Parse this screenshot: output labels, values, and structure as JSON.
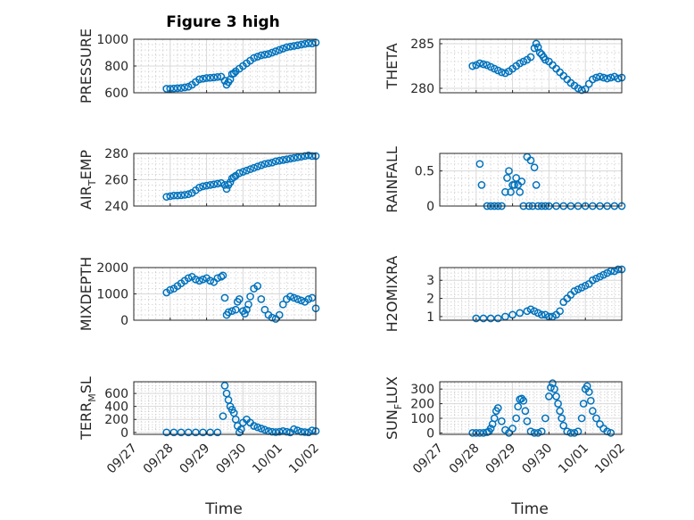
{
  "figure": {
    "title": "Figure 3 high",
    "xlabel": "Time",
    "marker_color": "#0072BD"
  },
  "xticks": [
    "09/27",
    "09/28",
    "09/29",
    "09/30",
    "10/01",
    "10/02"
  ],
  "chart_data": [
    {
      "type": "scatter",
      "ylabel": "PRESSURE",
      "title": "Figure 3 high",
      "ylim": [
        600,
        1000
      ],
      "yticks": [
        600,
        800,
        1000
      ],
      "grid": true,
      "x": [
        0.9,
        1.0,
        1.1,
        1.2,
        1.3,
        1.4,
        1.5,
        1.6,
        1.7,
        1.8,
        1.9,
        2.0,
        2.1,
        2.2,
        2.3,
        2.4,
        2.5,
        2.55,
        2.6,
        2.65,
        2.7,
        2.75,
        2.8,
        2.9,
        3.0,
        3.1,
        3.2,
        3.3,
        3.4,
        3.5,
        3.6,
        3.7,
        3.8,
        3.9,
        4.0,
        4.1,
        4.2,
        4.3,
        4.4,
        4.5,
        4.6,
        4.7,
        4.8,
        4.9,
        5.0
      ],
      "y": [
        630,
        630,
        632,
        634,
        636,
        640,
        645,
        660,
        680,
        700,
        705,
        710,
        712,
        714,
        718,
        720,
        690,
        660,
        680,
        700,
        740,
        745,
        760,
        780,
        800,
        820,
        840,
        860,
        870,
        880,
        885,
        890,
        900,
        910,
        920,
        930,
        940,
        945,
        950,
        955,
        960,
        965,
        970,
        968,
        975
      ]
    },
    {
      "type": "scatter",
      "ylabel": "THETA",
      "ylim": [
        279.5,
        285.5
      ],
      "yticks": [
        280,
        285
      ],
      "grid": true,
      "x": [
        0.9,
        1.0,
        1.1,
        1.2,
        1.3,
        1.4,
        1.5,
        1.6,
        1.7,
        1.8,
        1.9,
        2.0,
        2.1,
        2.2,
        2.3,
        2.4,
        2.5,
        2.6,
        2.65,
        2.7,
        2.75,
        2.8,
        2.85,
        2.9,
        3.0,
        3.1,
        3.2,
        3.3,
        3.4,
        3.5,
        3.6,
        3.7,
        3.8,
        3.9,
        4.0,
        4.1,
        4.2,
        4.3,
        4.4,
        4.5,
        4.6,
        4.7,
        4.8,
        4.9,
        5.0
      ],
      "y": [
        282.5,
        282.6,
        282.8,
        282.7,
        282.6,
        282.4,
        282.2,
        282.0,
        281.8,
        281.7,
        281.9,
        282.2,
        282.5,
        282.8,
        283.0,
        283.2,
        283.5,
        284.5,
        285.0,
        284.6,
        284.0,
        283.8,
        283.5,
        283.2,
        283.0,
        282.6,
        282.2,
        281.8,
        281.4,
        281.0,
        280.6,
        280.3,
        280.0,
        279.8,
        279.9,
        280.5,
        281.0,
        281.2,
        281.3,
        281.2,
        281.1,
        281.2,
        281.3,
        281.1,
        281.2
      ]
    },
    {
      "type": "scatter",
      "ylabel": "AIR_TEMP",
      "ylim": [
        240,
        280
      ],
      "yticks": [
        240,
        260,
        280
      ],
      "grid": true,
      "x": [
        0.9,
        1.0,
        1.1,
        1.2,
        1.3,
        1.4,
        1.5,
        1.6,
        1.7,
        1.8,
        1.9,
        2.0,
        2.1,
        2.2,
        2.3,
        2.4,
        2.5,
        2.55,
        2.6,
        2.65,
        2.7,
        2.75,
        2.8,
        2.9,
        3.0,
        3.1,
        3.2,
        3.3,
        3.4,
        3.5,
        3.6,
        3.7,
        3.8,
        3.9,
        4.0,
        4.1,
        4.2,
        4.3,
        4.4,
        4.5,
        4.6,
        4.7,
        4.8,
        4.9,
        5.0
      ],
      "y": [
        247,
        247.5,
        248,
        248,
        248.2,
        248.5,
        249,
        250,
        252,
        254,
        255,
        255.5,
        256,
        256.5,
        257,
        257.5,
        256,
        253,
        256,
        258,
        261,
        262,
        263,
        265,
        266,
        267,
        268,
        269,
        270,
        271,
        272,
        272.5,
        273,
        274,
        274.5,
        275,
        275.5,
        276,
        276.5,
        277,
        277.5,
        278,
        278.5,
        278,
        278
      ]
    },
    {
      "type": "scatter",
      "ylabel": "RAINFALL",
      "ylim": [
        0,
        0.75
      ],
      "yticks": [
        0,
        0.5
      ],
      "grid": true,
      "x": [
        1.1,
        1.15,
        1.3,
        1.4,
        1.5,
        1.6,
        1.7,
        1.8,
        1.85,
        1.9,
        1.95,
        2.0,
        2.05,
        2.1,
        2.15,
        2.2,
        2.25,
        2.3,
        2.4,
        2.45,
        2.5,
        2.55,
        2.6,
        2.65,
        2.7,
        2.8,
        2.9,
        3.0,
        3.2,
        3.4,
        3.6,
        3.8,
        4.0,
        4.2,
        4.4,
        4.6,
        4.8,
        5.0
      ],
      "y": [
        0.6,
        0.3,
        0,
        0,
        0,
        0,
        0,
        0.2,
        0.4,
        0.5,
        0.2,
        0.3,
        0.3,
        0.4,
        0.3,
        0.2,
        0.35,
        0,
        0.7,
        0,
        0.65,
        0,
        0.55,
        0.3,
        0,
        0,
        0,
        0,
        0,
        0,
        0,
        0,
        0,
        0,
        0,
        0,
        0,
        0
      ]
    },
    {
      "type": "scatter",
      "ylabel": "MIXDEPTH",
      "ylim": [
        0,
        2000
      ],
      "yticks": [
        0,
        1000,
        2000
      ],
      "grid": true,
      "x": [
        0.9,
        1.0,
        1.1,
        1.2,
        1.3,
        1.4,
        1.5,
        1.6,
        1.7,
        1.8,
        1.9,
        2.0,
        2.1,
        2.2,
        2.3,
        2.4,
        2.45,
        2.5,
        2.55,
        2.6,
        2.7,
        2.8,
        2.85,
        2.9,
        3.0,
        3.05,
        3.1,
        3.15,
        3.2,
        3.3,
        3.4,
        3.5,
        3.6,
        3.7,
        3.8,
        3.9,
        4.0,
        4.1,
        4.2,
        4.3,
        4.4,
        4.5,
        4.6,
        4.7,
        4.8,
        4.9,
        5.0
      ],
      "y": [
        1050,
        1150,
        1200,
        1300,
        1400,
        1500,
        1600,
        1650,
        1550,
        1500,
        1550,
        1600,
        1500,
        1450,
        1600,
        1650,
        1700,
        850,
        200,
        300,
        350,
        400,
        700,
        800,
        350,
        250,
        400,
        600,
        900,
        1200,
        1300,
        800,
        400,
        200,
        100,
        50,
        200,
        600,
        800,
        900,
        850,
        800,
        750,
        700,
        800,
        850,
        450
      ]
    },
    {
      "type": "scatter",
      "ylabel": "H2OMIXRA",
      "ylim": [
        0.8,
        3.7
      ],
      "yticks": [
        1,
        2,
        3
      ],
      "grid": true,
      "x": [
        1.0,
        1.2,
        1.4,
        1.6,
        1.8,
        2.0,
        2.2,
        2.4,
        2.5,
        2.6,
        2.7,
        2.8,
        2.9,
        3.0,
        3.1,
        3.2,
        3.3,
        3.4,
        3.5,
        3.6,
        3.7,
        3.8,
        3.9,
        4.0,
        4.1,
        4.2,
        4.3,
        4.4,
        4.5,
        4.6,
        4.7,
        4.8,
        4.9,
        5.0
      ],
      "y": [
        0.9,
        0.9,
        0.9,
        0.9,
        1.0,
        1.1,
        1.2,
        1.3,
        1.4,
        1.3,
        1.2,
        1.1,
        1.1,
        1.0,
        1.0,
        1.1,
        1.3,
        1.8,
        2.0,
        2.2,
        2.4,
        2.5,
        2.6,
        2.7,
        2.8,
        3.0,
        3.1,
        3.2,
        3.3,
        3.4,
        3.5,
        3.5,
        3.6,
        3.6
      ]
    },
    {
      "type": "scatter",
      "ylabel": "TERR_MSL",
      "ylim": [
        -30,
        780
      ],
      "yticks": [
        0,
        200,
        400,
        600
      ],
      "grid": true,
      "x": [
        0.9,
        1.1,
        1.3,
        1.5,
        1.7,
        1.9,
        2.1,
        2.3,
        2.45,
        2.5,
        2.55,
        2.6,
        2.65,
        2.7,
        2.75,
        2.8,
        2.85,
        2.9,
        2.95,
        3.0,
        3.1,
        3.2,
        3.3,
        3.4,
        3.5,
        3.6,
        3.7,
        3.8,
        3.9,
        4.0,
        4.1,
        4.2,
        4.3,
        4.4,
        4.5,
        4.6,
        4.7,
        4.8,
        4.9,
        5.0
      ],
      "y": [
        0,
        0,
        0,
        0,
        0,
        0,
        0,
        0,
        250,
        720,
        600,
        500,
        400,
        350,
        300,
        200,
        100,
        0,
        50,
        150,
        200,
        150,
        100,
        80,
        60,
        40,
        20,
        10,
        5,
        10,
        20,
        10,
        0,
        50,
        30,
        10,
        5,
        0,
        30,
        20
      ]
    },
    {
      "type": "scatter",
      "ylabel": "SUN_FLUX",
      "ylim": [
        -10,
        350
      ],
      "yticks": [
        0,
        100,
        200,
        300
      ],
      "grid": true,
      "x": [
        0.9,
        1.0,
        1.1,
        1.2,
        1.3,
        1.35,
        1.4,
        1.45,
        1.5,
        1.55,
        1.6,
        1.7,
        1.8,
        1.9,
        2.0,
        2.1,
        2.15,
        2.2,
        2.25,
        2.3,
        2.35,
        2.4,
        2.5,
        2.6,
        2.7,
        2.8,
        2.9,
        3.0,
        3.05,
        3.1,
        3.15,
        3.2,
        3.25,
        3.3,
        3.35,
        3.4,
        3.5,
        3.6,
        3.7,
        3.8,
        3.9,
        3.95,
        4.0,
        4.05,
        4.1,
        4.15,
        4.2,
        4.3,
        4.4,
        4.5,
        4.6,
        4.7
      ],
      "y": [
        0,
        0,
        0,
        0,
        5,
        10,
        30,
        60,
        100,
        150,
        170,
        80,
        20,
        0,
        30,
        100,
        180,
        230,
        235,
        220,
        150,
        80,
        10,
        0,
        0,
        10,
        100,
        250,
        310,
        340,
        300,
        250,
        200,
        150,
        100,
        50,
        10,
        0,
        0,
        10,
        100,
        200,
        300,
        320,
        280,
        220,
        150,
        100,
        60,
        30,
        10,
        0
      ]
    }
  ]
}
